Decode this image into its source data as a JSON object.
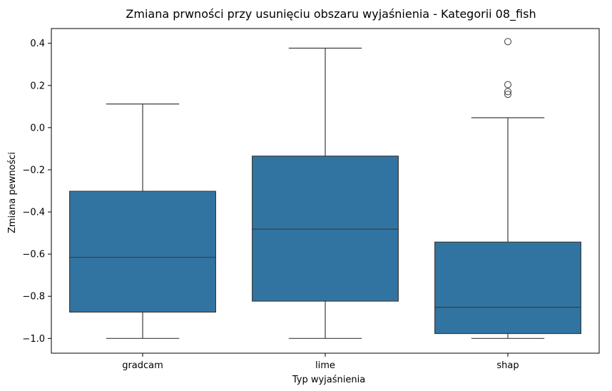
{
  "chart_data": {
    "type": "box",
    "title": "Zmiana prwności przy usunięciu obszaru wyjaśnienia - Kategorii 08_fish",
    "xlabel": "Typ wyjaśnienia",
    "ylabel": "Zmiana pewności",
    "ylim": [
      -1.07,
      0.47
    ],
    "yticks": [
      0.4,
      0.2,
      0.0,
      -0.2,
      -0.4,
      -0.6,
      -0.8,
      -1.0
    ],
    "ytick_labels": [
      "0.4",
      "0.2",
      "0.0",
      "−0.2",
      "−0.4",
      "−0.6",
      "−0.8",
      "−1.0"
    ],
    "categories": [
      "gradcam",
      "lime",
      "shap"
    ],
    "box_color": "#3274a1",
    "line_color": "#3d3d3d",
    "boxes": [
      {
        "category": "gradcam",
        "whisker_low": -1.0,
        "q1": -0.875,
        "median": -0.615,
        "q3": -0.302,
        "whisker_high": 0.112,
        "outliers": []
      },
      {
        "category": "lime",
        "whisker_low": -1.0,
        "q1": -0.823,
        "median": -0.482,
        "q3": -0.135,
        "whisker_high": 0.377,
        "outliers": []
      },
      {
        "category": "shap",
        "whisker_low": -1.0,
        "q1": -0.977,
        "median": -0.852,
        "q3": -0.543,
        "whisker_high": 0.047,
        "outliers": [
          0.408,
          0.204,
          0.171,
          0.158
        ]
      }
    ]
  }
}
